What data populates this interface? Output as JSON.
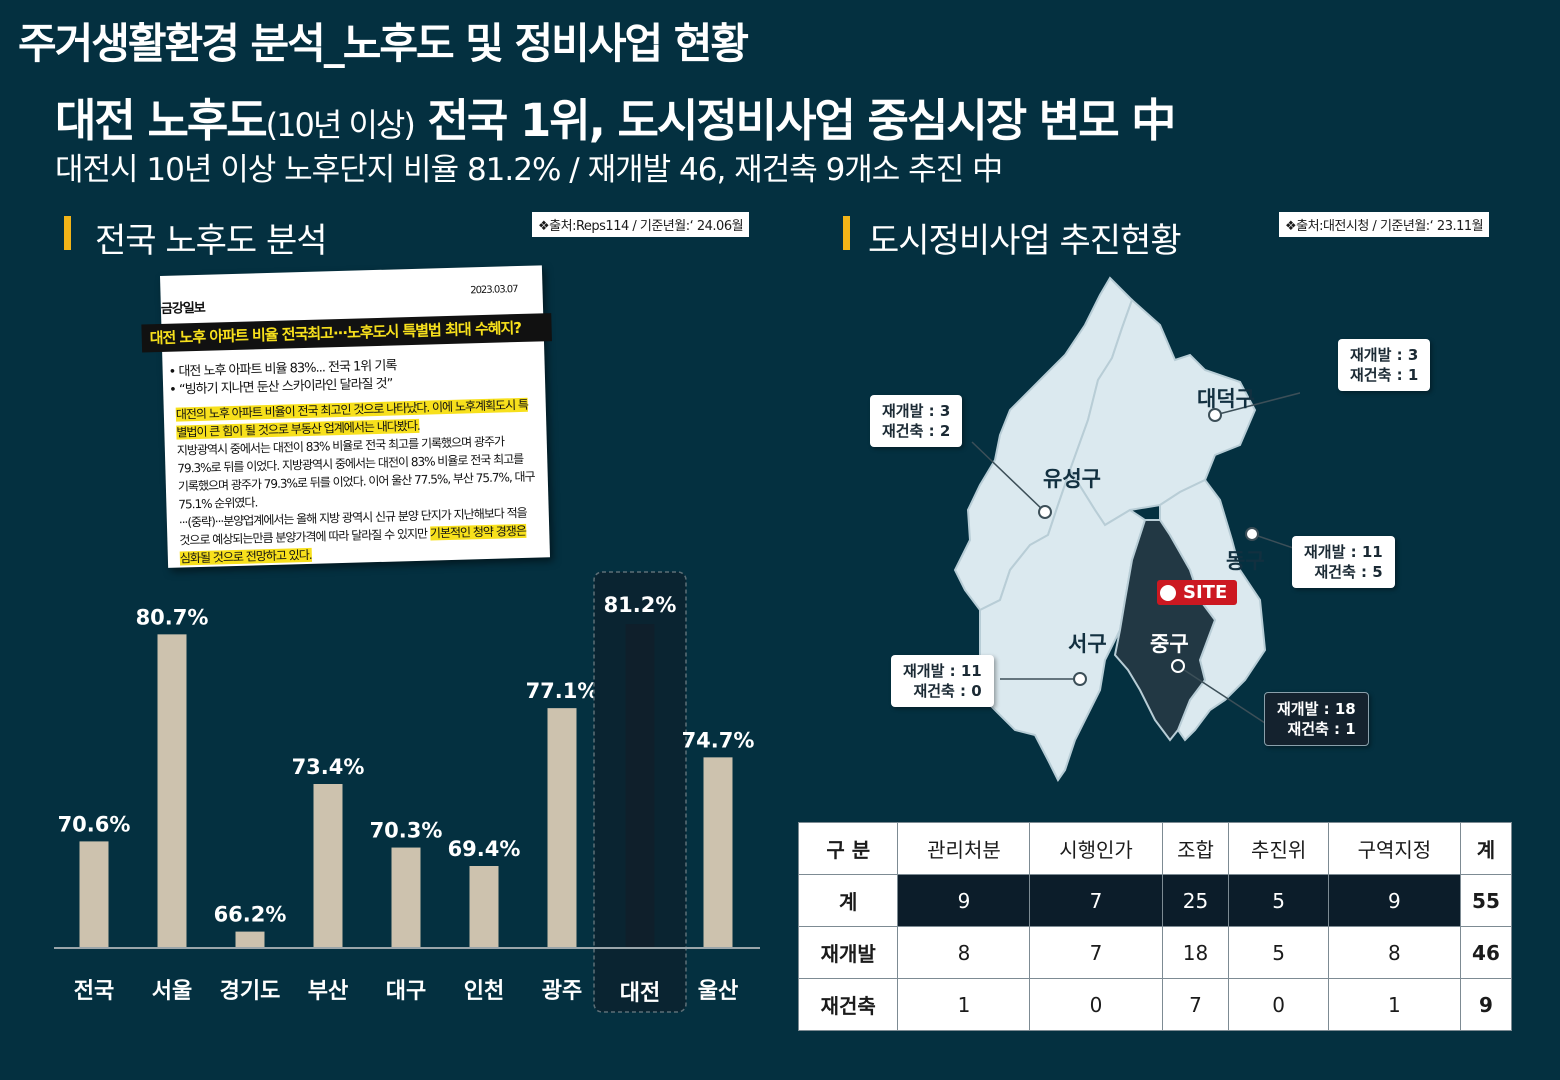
{
  "page_title": "주거생활환경 분석_노후도 및 정비사업 현황",
  "headline": {
    "main_a": "대전 노후도",
    "small": "(10년 이상)",
    "main_b": " 전국 1위, 도시정비사업 중심시장 변모 中"
  },
  "subheadline": "대전시 10년 이상 노후단지 비율 81.2% / 재개발 46, 재건축 9개소 추진 中",
  "left_section": {
    "title": "전국 노후도 분석",
    "source": "❖출처:Reps114 / 기준년월:‘ 24.06월"
  },
  "right_section": {
    "title": "도시정비사업 추진현황",
    "source": "❖출처:대전시청 / 기준년월:‘ 23.11월"
  },
  "news": {
    "paper": "금강일보",
    "date": "2023.03.07",
    "headline": "대전 노후 아파트 비율 전국최고···노후도시 특별법 최대 수혜지?",
    "bullets": [
      "• 대전 노후 아파트 비율 83%... 전국 1위 기록",
      "• “빙하기 지나면 둔산 스카이라인 달라질 것”"
    ],
    "body_highlight_1": "대전의 노후 아파트 비율이 전국 최고인 것으로 나타났다. 이에 노후계획도시 특별법이 큰 힘이 될 것으로 부동산 업계에서는 내다봤다.",
    "body_1": "지방광역시 중에서는 대전이 83% 비율로 전국 최고를 기록했으며 광주가 79.3%로 뒤를 이었다. 지방광역시 중에서는 대전이 83% 비율로 전국 최고를 기록했으며 광주가 79.3%로 뒤를 이었다. 이어 울산 77.5%, 부산 75.7%, 대구 75.1% 순위였다.",
    "body_2_prefix": "···(중략)···분양업계에서는 올해 지방 광역시 신규 분양 단지가 지난해보다 적을 것으로 예상되는만큼 분양가격에 따라 달라질 수 있지만 ",
    "body_highlight_2": "기본적인 청약 경쟁은 심화될 것으로 전망하고 있다."
  },
  "chart_data": {
    "type": "bar",
    "title": "전국 노후도 분석",
    "categories": [
      "전국",
      "서울",
      "경기도",
      "부산",
      "대구",
      "인천",
      "광주",
      "대전",
      "울산"
    ],
    "values": [
      70.6,
      80.7,
      66.2,
      73.4,
      70.3,
      69.4,
      77.1,
      81.2,
      74.7
    ],
    "value_labels": [
      "70.6%",
      "80.7%",
      "66.2%",
      "73.4%",
      "70.3%",
      "69.4%",
      "77.1%",
      "81.2%",
      "74.7%"
    ],
    "unit": "%",
    "highlight_category": "대전",
    "colors": {
      "bar": "#cdc2ae",
      "highlight_bar": "#0f1f2b",
      "highlight_text": "#f2b418"
    },
    "grid": false,
    "legend": "none"
  },
  "map": {
    "districts": [
      "대덕구",
      "유성구",
      "동구",
      "서구",
      "중구"
    ],
    "site_label": "SITE",
    "callouts": {
      "daedeok": [
        "재개발 : 3",
        "재건축 : 1"
      ],
      "yuseong": [
        "재개발 : 3",
        "재건축 : 2"
      ],
      "dong": [
        "재개발 : 11",
        "재건축 : 5"
      ],
      "seo": [
        "재개발 : 11",
        "재건축 : 0"
      ],
      "jung": [
        "재개발 : 18",
        "재건축 : 1"
      ]
    },
    "colors": {
      "land": "#dbe9ef",
      "highlight": "#223844"
    }
  },
  "table": {
    "headers": [
      "구 분",
      "관리처분",
      "시행인가",
      "조합",
      "추진위",
      "구역지정",
      "계"
    ],
    "rows": [
      {
        "label": "계",
        "cells": [
          "9",
          "7",
          "25",
          "5",
          "9"
        ],
        "total": "55"
      },
      {
        "label": "재개발",
        "cells": [
          "8",
          "7",
          "18",
          "5",
          "8"
        ],
        "total": "46"
      },
      {
        "label": "재건축",
        "cells": [
          "1",
          "0",
          "7",
          "0",
          "1"
        ],
        "total": "9"
      }
    ]
  }
}
